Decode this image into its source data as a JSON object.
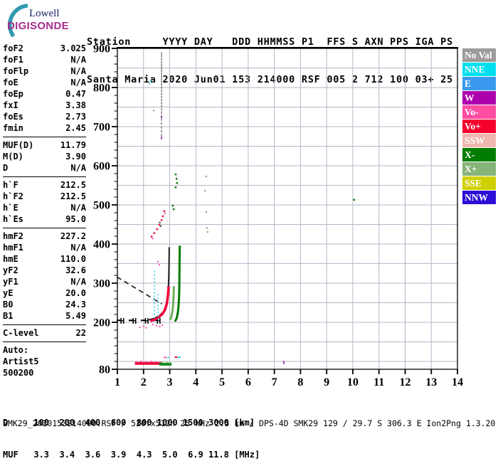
{
  "logo": {
    "line1": "Lowell",
    "line2": "DIGISONDE",
    "arc_color": "#2e9ab0"
  },
  "header": {
    "line1": "Station     YYYY DAY   DDD HHMMSS P1  FFS S AXN PPS IGA PS",
    "line2": "Santa Maria 2020 Jun01 153 214000 RSF 005 2 712 100 03+ 25"
  },
  "station_info": {
    "station": "Santa Maria",
    "yyyy": "2020",
    "day": "Jun01",
    "ddd": "153",
    "hhmmss": "214000",
    "p1": "RSF",
    "ffs": "005",
    "s": "2",
    "axn": "712",
    "pps": "100",
    "iga": "03+",
    "ps": "25"
  },
  "params": {
    "groups": [
      [
        [
          "foF2",
          "3.025"
        ],
        [
          "foF1",
          "N/A"
        ],
        [
          "foFlp",
          "N/A"
        ],
        [
          "foE",
          "N/A"
        ],
        [
          "foEp",
          "0.47"
        ],
        [
          "fxI",
          "3.38"
        ],
        [
          "foEs",
          "2.73"
        ],
        [
          "fmin",
          "2.45"
        ]
      ],
      [
        [
          "MUF(D)",
          "11.79"
        ],
        [
          "M(D)",
          "3.90"
        ],
        [
          "D",
          "N/A"
        ]
      ],
      [
        [
          "h`F",
          "212.5"
        ],
        [
          "h`F2",
          "212.5"
        ],
        [
          "h`E",
          "N/A"
        ],
        [
          "h`Es",
          "95.0"
        ]
      ],
      [
        [
          "hmF2",
          "227.2"
        ],
        [
          "hmF1",
          "N/A"
        ],
        [
          "hmE",
          "110.0"
        ],
        [
          "yF2",
          "32.6"
        ],
        [
          "yF1",
          "N/A"
        ],
        [
          "yE",
          "20.0"
        ],
        [
          "B0",
          "24.3"
        ],
        [
          "B1",
          "5.49"
        ]
      ],
      [
        [
          "C-level",
          "22"
        ]
      ],
      [
        [
          "Auto:",
          ""
        ],
        [
          "Artist5",
          ""
        ],
        [
          "500200",
          ""
        ]
      ]
    ]
  },
  "legend": {
    "items": [
      {
        "label": "No Val",
        "color": "#9b9b9b"
      },
      {
        "label": "NNE",
        "color": "#00dff0"
      },
      {
        "label": "E",
        "color": "#3a99ee"
      },
      {
        "label": "W",
        "color": "#ad00ad"
      },
      {
        "label": "Vo-",
        "color": "#ff4da2"
      },
      {
        "label": "Vo+",
        "color": "#f6002e"
      },
      {
        "label": "SSW",
        "color": "#f0b6b0"
      },
      {
        "label": "X-",
        "color": "#007d00"
      },
      {
        "label": "X+",
        "color": "#87b478"
      },
      {
        "label": "SSE",
        "color": "#cfcf00"
      },
      {
        "label": "NNW",
        "color": "#2b0fd6"
      }
    ]
  },
  "footer": {
    "d_line": "D     100  200  400  600  800 1000 1500 3000 [km]",
    "muf_line": "MUF   3.3  3.4  3.6  3.9  4.3  5.0  6.9 11.8 [MHz]",
    "file_line": "SMK29_2020153214000.RSF / 520fx512h 25 kHz 2.5 km / DPS-4D SMK29 129 / 29.7 S 306.3 E Ion2Png 1.3.20",
    "mufd_table": {
      "distances_km": [
        100,
        200,
        400,
        600,
        800,
        1000,
        1500,
        3000
      ],
      "muf_mhz": [
        3.3,
        3.4,
        3.6,
        3.9,
        4.3,
        5.0,
        6.9,
        11.8
      ]
    }
  },
  "chart_data": {
    "type": "scatter",
    "title": "",
    "xlabel": "[MHz]",
    "ylabel": "[km]",
    "xlim": [
      1,
      14
    ],
    "ylim": [
      80,
      900
    ],
    "x_ticks": [
      1,
      2,
      3,
      4,
      5,
      6,
      7,
      8,
      9,
      10,
      11,
      12,
      13,
      14
    ],
    "y_tick_labels": [
      900,
      800,
      700,
      600,
      500,
      400,
      300,
      200,
      80
    ],
    "y_minor_step": 20,
    "grid": {
      "x_lines": [
        2,
        3,
        4,
        5,
        6,
        7,
        8,
        9,
        10,
        11,
        12,
        13
      ],
      "y_from": 100,
      "y_to": 850,
      "y_step": 50,
      "color": "#b6b6ca"
    },
    "series": [
      {
        "name": "es-layer-red-band",
        "type": "line",
        "color": "#ee0a3c",
        "width": 4,
        "points": [
          [
            1.67,
            95
          ],
          [
            2.68,
            95
          ]
        ]
      },
      {
        "name": "es-layer-green-band",
        "type": "line",
        "color": "#0f8a1e",
        "width": 4,
        "points": [
          [
            2.6,
            93
          ],
          [
            3.07,
            93
          ]
        ]
      },
      {
        "name": "es-speckles-pink",
        "type": "dots",
        "color": "#ff50a4",
        "size": 2,
        "points": [
          [
            1.72,
            99
          ],
          [
            1.9,
            100
          ],
          [
            2.1,
            99
          ],
          [
            2.3,
            100
          ],
          [
            2.48,
            99
          ],
          [
            2.8,
            110
          ],
          [
            2.85,
            110
          ]
        ]
      },
      {
        "name": "es-speckles-lightgreen",
        "type": "dots",
        "color": "#66b050",
        "size": 2,
        "points": [
          [
            2.72,
            97
          ],
          [
            2.9,
            97
          ],
          [
            3.0,
            96
          ]
        ]
      },
      {
        "name": "es-speckles-cyan",
        "type": "dots",
        "color": "#22d2ea",
        "size": 2,
        "points": [
          [
            2.94,
            110
          ],
          [
            3.33,
            110
          ],
          [
            3.39,
            111
          ]
        ]
      },
      {
        "name": "es-speckles-red",
        "type": "dots",
        "color": "#ee0a3c",
        "size": 2,
        "points": [
          [
            3.22,
            111
          ],
          [
            3.27,
            111
          ]
        ]
      },
      {
        "name": "h-marker-dash-line",
        "type": "line",
        "color": "#000000",
        "width": 2,
        "dash": "6,11",
        "points": [
          [
            0.97,
            205
          ],
          [
            2.76,
            205
          ]
        ]
      },
      {
        "name": "h-markers",
        "type": "text",
        "text": "H",
        "color": "#000000",
        "size": 11,
        "points": [
          [
            1.19,
            204
          ],
          [
            1.65,
            204
          ],
          [
            2.12,
            204
          ],
          [
            2.58,
            204
          ]
        ]
      },
      {
        "name": "artist-dashed-extension",
        "type": "line",
        "color": "#111111",
        "width": 1.6,
        "dash": "7,5",
        "points": [
          [
            0.98,
            316
          ],
          [
            2.7,
            247
          ]
        ]
      },
      {
        "name": "artist-o-trace",
        "type": "line",
        "color": "#111111",
        "width": 1.8,
        "points": [
          [
            2.2,
            206
          ],
          [
            2.4,
            210
          ],
          [
            2.6,
            217
          ],
          [
            2.75,
            226
          ],
          [
            2.85,
            240
          ],
          [
            2.91,
            258
          ],
          [
            2.945,
            283
          ],
          [
            2.965,
            320
          ],
          [
            2.975,
            355
          ],
          [
            2.98,
            392
          ]
        ]
      },
      {
        "name": "f-trace-red",
        "type": "line",
        "color": "#f2013a",
        "width": 3.5,
        "points": [
          [
            2.26,
            203
          ],
          [
            2.45,
            208
          ],
          [
            2.6,
            214
          ],
          [
            2.72,
            221
          ],
          [
            2.82,
            232
          ],
          [
            2.89,
            248
          ],
          [
            2.925,
            265
          ],
          [
            2.95,
            282
          ],
          [
            2.955,
            292
          ]
        ]
      },
      {
        "name": "f-trace-green-inner",
        "type": "line",
        "color": "#6fae5c",
        "width": 3,
        "points": [
          [
            3.02,
            206
          ],
          [
            3.07,
            216
          ],
          [
            3.11,
            230
          ],
          [
            3.135,
            248
          ],
          [
            3.15,
            270
          ],
          [
            3.16,
            292
          ]
        ]
      },
      {
        "name": "f-trace-green-outer",
        "type": "line",
        "color": "#007a00",
        "width": 3,
        "points": [
          [
            3.2,
            202
          ],
          [
            3.27,
            211
          ],
          [
            3.31,
            224
          ],
          [
            3.34,
            242
          ],
          [
            3.36,
            268
          ],
          [
            3.37,
            300
          ],
          [
            3.375,
            338
          ],
          [
            3.38,
            370
          ],
          [
            3.385,
            396
          ]
        ]
      },
      {
        "name": "cyan-dotted-line-1",
        "type": "line",
        "color": "#38c8f0",
        "width": 1.5,
        "dash": "2,3",
        "points": [
          [
            2.42,
            210
          ],
          [
            2.42,
            336
          ]
        ]
      },
      {
        "name": "cyan-dotted-line-2",
        "type": "line",
        "color": "#38c8f0",
        "width": 1.5,
        "dash": "2,3",
        "points": [
          [
            2.56,
            205
          ],
          [
            2.56,
            275
          ]
        ]
      },
      {
        "name": "pink-scatter",
        "type": "dots",
        "color": "#ff50a4",
        "size": 2,
        "points": [
          [
            1.85,
            187
          ],
          [
            2.0,
            190
          ],
          [
            2.1,
            186
          ],
          [
            2.35,
            194
          ],
          [
            2.5,
            191
          ],
          [
            2.62,
            189
          ],
          [
            2.72,
            193
          ],
          [
            2.55,
            355
          ],
          [
            2.6,
            347
          ],
          [
            2.82,
            478
          ],
          [
            2.35,
            414
          ],
          [
            7.36,
            100
          ]
        ]
      },
      {
        "name": "second-hop-red",
        "type": "dots",
        "color": "#e8103c",
        "size": 2.5,
        "points": [
          [
            2.79,
            484
          ],
          [
            2.74,
            471
          ],
          [
            2.69,
            461
          ],
          [
            2.6,
            449
          ],
          [
            2.52,
            438
          ],
          [
            2.41,
            428
          ],
          [
            2.31,
            419
          ]
        ]
      },
      {
        "name": "second-hop-green",
        "type": "dots",
        "color": "#0a7a0a",
        "size": 2.5,
        "points": [
          [
            3.23,
            578
          ],
          [
            3.26,
            567
          ],
          [
            3.28,
            556
          ],
          [
            3.23,
            545
          ],
          [
            3.12,
            498
          ],
          [
            3.15,
            489
          ],
          [
            10.05,
            513
          ]
        ]
      },
      {
        "name": "interference-column",
        "type": "dots",
        "color": "#8c8c8c",
        "size": [
          1.8,
          3.2
        ],
        "points": [
          [
            2.69,
            887
          ],
          [
            2.69,
            880
          ],
          [
            2.69,
            872
          ],
          [
            2.69,
            864
          ],
          [
            2.69,
            857
          ],
          [
            2.69,
            850
          ],
          [
            2.69,
            843
          ],
          [
            2.69,
            836
          ],
          [
            2.69,
            829
          ],
          [
            2.69,
            822
          ],
          [
            2.69,
            815
          ],
          [
            2.69,
            808
          ],
          [
            2.69,
            800
          ],
          [
            2.69,
            792
          ],
          [
            2.69,
            784
          ],
          [
            2.69,
            776
          ],
          [
            2.69,
            768
          ],
          [
            2.69,
            760
          ],
          [
            2.69,
            752
          ],
          [
            2.69,
            744
          ],
          [
            2.69,
            736
          ],
          [
            2.69,
            727
          ],
          [
            2.69,
            718
          ],
          [
            2.69,
            708
          ],
          [
            2.69,
            698
          ],
          [
            2.69,
            688
          ],
          [
            2.69,
            678
          ],
          [
            2.69,
            670
          ]
        ]
      },
      {
        "name": "gray-scatter",
        "type": "dots",
        "color": "#8c8c8c",
        "size": 2,
        "points": [
          [
            4.21,
            827
          ],
          [
            2.39,
            741
          ],
          [
            4.4,
            573
          ],
          [
            4.35,
            536
          ],
          [
            4.42,
            441
          ],
          [
            4.45,
            431
          ],
          [
            4.4,
            482
          ]
        ]
      },
      {
        "name": "cyan-scatter",
        "type": "dots",
        "color": "#22d2ea",
        "size": 2,
        "points": [
          [
            2.28,
            818
          ],
          [
            2.24,
            810
          ]
        ]
      },
      {
        "name": "purple-scatter",
        "type": "dots",
        "color": "#8818b0",
        "size": 2,
        "points": [
          [
            2.69,
            724
          ],
          [
            2.69,
            672
          ]
        ]
      },
      {
        "name": "blue-scatter",
        "type": "dots",
        "color": "#3018c8",
        "size": 2,
        "points": [
          [
            7.36,
            96
          ]
        ]
      },
      {
        "name": "dark-scatter",
        "type": "dots",
        "color": "#303030",
        "size": 2,
        "points": [
          [
            2.62,
            455
          ],
          [
            2.66,
            446
          ]
        ]
      }
    ]
  }
}
